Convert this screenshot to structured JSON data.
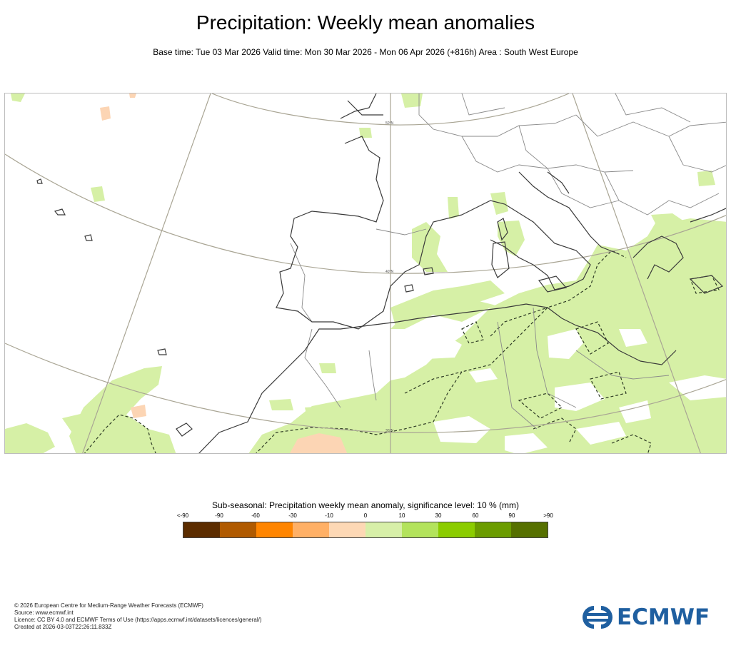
{
  "header": {
    "title": "Precipitation: Weekly mean anomalies",
    "subtitle": "Base time: Tue 03 Mar 2026 Valid time: Mon 30 Mar 2026 - Mon 06 Apr 2026 (+816h) Area : South West Europe"
  },
  "map": {
    "region": "South West Europe",
    "graticule_labels": [
      "50°N",
      "40°N",
      "30°N"
    ],
    "colors": {
      "coast": "#3a3a3a",
      "border": "#8a8a8a",
      "graticule": "#a9a594",
      "light_green": "#d6f0a6",
      "light_orange": "#fcd5b4"
    }
  },
  "legend": {
    "title": "Sub-seasonal: Precipitation weekly mean anomaly, significance level: 10 % (mm)",
    "tick_labels": [
      "<-90",
      "-90",
      "-60",
      "-30",
      "-10",
      "0",
      "10",
      "30",
      "60",
      "90",
      ">90"
    ],
    "colors": [
      "#5c2d00",
      "#b05a00",
      "#ff8500",
      "#ffb066",
      "#fdd8b5",
      "#d7efa8",
      "#b3e35c",
      "#8bcc00",
      "#6b9c00",
      "#567000"
    ]
  },
  "footer": {
    "copyright": "© 2026 European Centre for Medium-Range Weather Forecasts (ECMWF)",
    "source": "Source: www.ecmwf.int",
    "licence": "Licence: CC BY 4.0 and ECMWF Terms of Use (https://apps.ecmwf.int/datasets/licences/general/)",
    "created": "Created at 2026-03-03T22:26:11.833Z"
  },
  "logo": {
    "text": "ECMWF",
    "color": "#1f5fa0"
  }
}
